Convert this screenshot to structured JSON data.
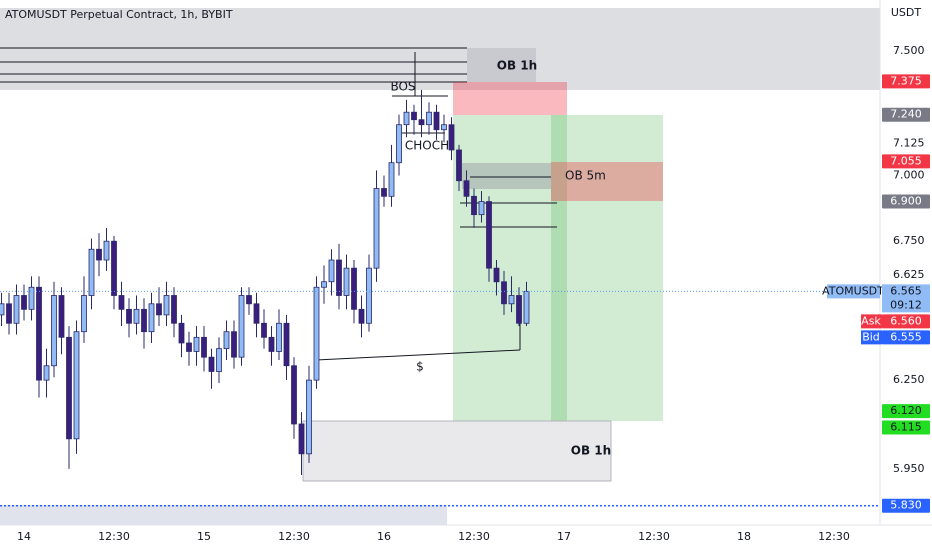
{
  "chart_data": {
    "type": "candlestick",
    "title": "ATOMUSDT Perpetual Contract, 1h, BYBIT",
    "y_unit": "USDT",
    "log_scale": true,
    "up_color": "#90bbf5",
    "down_color": "#3a1f7c",
    "wick_color": "#2a2a6a",
    "x": [
      -3,
      -2,
      -1,
      0,
      1,
      2,
      3,
      4,
      5,
      6,
      7,
      8,
      9,
      10,
      11,
      12,
      13,
      14,
      15,
      16,
      17,
      18,
      19,
      20,
      21,
      22,
      23,
      24,
      25,
      26,
      27,
      28,
      29,
      30,
      31,
      32,
      33,
      34,
      35,
      36,
      37,
      38,
      39,
      40,
      41,
      42,
      43,
      44,
      45,
      46,
      47,
      48,
      49,
      50,
      51,
      52,
      53,
      54,
      55,
      56,
      57,
      58,
      59,
      60,
      61,
      62,
      63,
      64,
      65,
      66,
      67
    ],
    "open": [
      6.48,
      6.52,
      6.45,
      6.55,
      6.5,
      6.58,
      6.25,
      6.3,
      6.55,
      6.4,
      6.05,
      6.42,
      6.55,
      6.72,
      6.68,
      6.75,
      6.55,
      6.5,
      6.45,
      6.5,
      6.42,
      6.52,
      6.48,
      6.55,
      6.45,
      6.38,
      6.35,
      6.4,
      6.33,
      6.28,
      6.36,
      6.42,
      6.33,
      6.55,
      6.52,
      6.45,
      6.4,
      6.35,
      6.45,
      6.3,
      6.1,
      6.0,
      6.25,
      6.58,
      6.6,
      6.68,
      6.55,
      6.65,
      6.5,
      6.45,
      6.65,
      6.95,
      6.92,
      7.05,
      7.2,
      7.25,
      7.22,
      7.2,
      7.25,
      7.18,
      7.2,
      7.1,
      6.98,
      6.92,
      6.85,
      6.9,
      6.65,
      6.6,
      6.52,
      6.55,
      6.45
    ],
    "high": [
      6.56,
      6.56,
      6.59,
      6.59,
      6.62,
      6.62,
      6.36,
      6.6,
      6.58,
      6.44,
      6.46,
      6.62,
      6.76,
      6.78,
      6.8,
      6.77,
      6.6,
      6.54,
      6.55,
      6.54,
      6.56,
      6.58,
      6.6,
      6.58,
      6.48,
      6.42,
      6.44,
      6.44,
      6.36,
      6.4,
      6.46,
      6.46,
      6.58,
      6.58,
      6.56,
      6.5,
      6.44,
      6.5,
      6.48,
      6.33,
      6.14,
      6.3,
      6.62,
      6.66,
      6.72,
      6.74,
      6.7,
      6.68,
      6.55,
      6.7,
      7.02,
      7.0,
      7.12,
      7.24,
      7.3,
      7.28,
      7.34,
      7.29,
      7.28,
      7.24,
      7.23,
      7.12,
      7.02,
      6.95,
      6.94,
      6.92,
      6.68,
      6.64,
      6.62,
      6.58,
      6.6
    ],
    "low": [
      6.44,
      6.41,
      6.41,
      6.46,
      6.46,
      6.19,
      6.19,
      6.26,
      6.34,
      5.95,
      6.0,
      6.38,
      6.5,
      6.62,
      6.64,
      6.5,
      6.44,
      6.4,
      6.41,
      6.36,
      6.38,
      6.44,
      6.44,
      6.4,
      6.33,
      6.3,
      6.3,
      6.28,
      6.22,
      6.24,
      6.32,
      6.29,
      6.3,
      6.48,
      6.4,
      6.36,
      6.3,
      6.32,
      6.25,
      6.05,
      5.93,
      5.97,
      6.22,
      6.52,
      6.55,
      6.5,
      6.5,
      6.45,
      6.4,
      6.42,
      6.6,
      6.88,
      6.88,
      7.0,
      7.15,
      7.16,
      7.15,
      7.16,
      7.14,
      7.13,
      7.06,
      6.94,
      6.88,
      6.8,
      6.82,
      6.6,
      6.55,
      6.48,
      6.49,
      6.44,
      6.44
    ],
    "close": [
      6.52,
      6.45,
      6.55,
      6.5,
      6.58,
      6.25,
      6.3,
      6.55,
      6.4,
      6.05,
      6.42,
      6.55,
      6.72,
      6.68,
      6.75,
      6.55,
      6.5,
      6.45,
      6.5,
      6.42,
      6.52,
      6.48,
      6.55,
      6.45,
      6.38,
      6.35,
      6.4,
      6.33,
      6.28,
      6.36,
      6.42,
      6.33,
      6.55,
      6.52,
      6.45,
      6.4,
      6.35,
      6.45,
      6.3,
      6.1,
      6.0,
      6.25,
      6.58,
      6.6,
      6.68,
      6.55,
      6.65,
      6.5,
      6.45,
      6.65,
      6.95,
      6.92,
      7.05,
      7.2,
      7.25,
      7.22,
      7.2,
      7.25,
      7.18,
      7.2,
      7.1,
      6.98,
      6.92,
      6.85,
      6.9,
      6.65,
      6.6,
      6.52,
      6.55,
      6.45,
      6.565
    ],
    "xlim": [
      -3.2,
      114.133
    ],
    "ylim": [
      5.768,
      7.715
    ],
    "xticks": [
      {
        "value": 0,
        "label": "14"
      },
      {
        "value": 12,
        "label": "12:30"
      },
      {
        "value": 24,
        "label": "15"
      },
      {
        "value": 36,
        "label": "12:30"
      },
      {
        "value": 48,
        "label": "16"
      },
      {
        "value": 60,
        "label": "12:30"
      },
      {
        "value": 72,
        "label": "17"
      },
      {
        "value": 84,
        "label": "12:30"
      },
      {
        "value": 96,
        "label": "18"
      },
      {
        "value": 108,
        "label": "12:30"
      }
    ],
    "yticks": [
      {
        "value": 7.5,
        "label": "7.500"
      },
      {
        "value": 7.125,
        "label": "7.125"
      },
      {
        "value": 7,
        "label": "7.000"
      },
      {
        "value": 6.75,
        "label": "6.750"
      },
      {
        "value": 6.625,
        "label": "6.625"
      },
      {
        "value": 6.25,
        "label": "6.250"
      },
      {
        "value": 5.95,
        "label": "5.950"
      }
    ],
    "price_labels": [
      {
        "value": 7.375,
        "label": "7.375",
        "color": "#f23645"
      },
      {
        "value": 7.24,
        "label": "7.240",
        "color": "#787b86"
      },
      {
        "value": 7.055,
        "label": "7.055",
        "color": "#f23645"
      },
      {
        "value": 6.9,
        "label": "6.900",
        "color": "#787b86"
      },
      {
        "value": 6.12,
        "label": "6.120",
        "color": "#22dd22"
      },
      {
        "value": 6.115,
        "label": "6.115",
        "color": "#22dd22"
      },
      {
        "value": 5.83,
        "label": "5.830",
        "color": "#2962ff"
      }
    ],
    "current": {
      "name": "ATOMUSDT",
      "value": 6.565,
      "label": "6.565",
      "countdown": "09:12",
      "color": "#90bbf5"
    },
    "ask": {
      "name": "Ask",
      "value": 6.56,
      "label": "6.560",
      "color": "#f23645"
    },
    "bid": {
      "name": "Bid",
      "value": 6.555,
      "label": "6.555",
      "color": "#2962ff"
    },
    "annotations": {
      "ob_1h_top": "OB 1h",
      "ob_5m": "OB 5m",
      "bos": "BOS",
      "choch": "CHOCH",
      "liquidity": "$",
      "ob_1h_bottom": "OB 1h"
    }
  }
}
